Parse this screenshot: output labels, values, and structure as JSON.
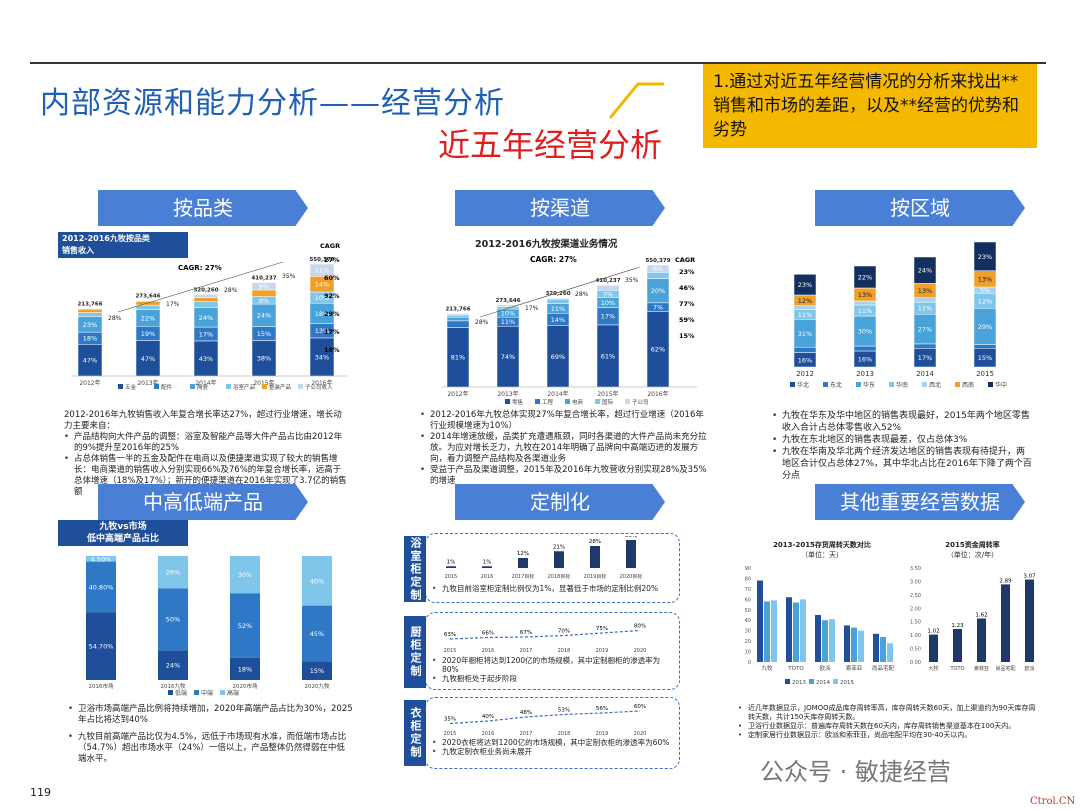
{
  "header": {
    "title": "内部资源和能力分析——经营分析",
    "subtitle": "近五年经营分析",
    "note": "1.通过对近五年经营情况的分析来找出**销售和市场的差距，以及**经营的优势和劣势"
  },
  "banners": {
    "product": "按品类",
    "channel": "按渠道",
    "region": "按区域",
    "tier": "中高低端产品",
    "custom": "定制化",
    "other": "其他重要经营数据"
  },
  "product_chart": {
    "title": "2012-2016九牧按品类\n销售收入",
    "cagr_label": "CAGR: 27%",
    "cagr_head": "CAGR",
    "years": [
      "2012年",
      "2013年",
      "2014年",
      "2015年",
      "2016年"
    ],
    "totals": [
      "213,766",
      "273,646",
      "320,260",
      "410,237",
      "550,379"
    ],
    "growth": [
      "28%",
      "17%",
      "28%",
      "35%"
    ],
    "cagr_values": [
      "27%",
      "60%",
      "92%",
      "29%",
      "17%",
      "18%"
    ],
    "legend": [
      "五金",
      "配件",
      "陶瓷",
      "浴室产品",
      "整装产品",
      "子公司收入"
    ],
    "text_intro": "2012-2016年九牧销售收入年复合增长率达27%，超过行业增速，增长动力主要来自：",
    "bullets": [
      "产品结构向大件产品的调整：浴室及智能产品等大件产品占比由2012年的9%提升至2016年的25%",
      "占总体销售一半的五金及配件在电商以及便捷渠道实现了较大的销售增长：电商渠道的销售收入分别实现66%及76%的年复合增长率，远高于总体增速（18%及17%）；新开的便捷渠道在2016年实现了3.7亿的销售额"
    ]
  },
  "channel_chart": {
    "title": "2012-2016九牧按渠道业务情况",
    "cagr_label": "CAGR: 27%",
    "cagr_head": "CAGR",
    "years": [
      "2012年",
      "2013年",
      "2014年",
      "2015年",
      "2016年"
    ],
    "totals": [
      "213,766",
      "273,646",
      "320,260",
      "410,237",
      "550,379"
    ],
    "growth": [
      "28%",
      "17%",
      "28%",
      "35%"
    ],
    "cagr_values": [
      "23%",
      "46%",
      "77%",
      "59%",
      "15%"
    ],
    "legend": [
      "零售",
      "工程",
      "电商",
      "国际",
      "子公司"
    ],
    "bullets": [
      "2012-2016年九牧总体实现27%年复合增长率，超过行业增速（2016年行业规模增速为10%）",
      "2014年增速放缓，品类扩充遭遇瓶颈，同时各渠道的大件产品尚未充分拉放。为应对增长乏力，九牧在2014年明确了品牌向中高端迈进的发展方向，着力调整产品结构及各渠道业务",
      "受益于产品及渠道调整，2015年及2016年九牧营收分别实现28%及35%的增速"
    ]
  },
  "region_chart": {
    "years": [
      "2012",
      "2013",
      "2014",
      "2015"
    ],
    "legend": [
      "华北",
      "东北",
      "华东",
      "华南",
      "西北",
      "西南",
      "华中"
    ],
    "bullets": [
      "九牧在华东及华中地区的销售表现最好，2015年两个地区零售收入合计占总体零售收入52%",
      "九牧在东北地区的销售表现最差，仅占总体3%",
      "九牧在华南及华北两个经济发达地区的销售表现有待提升，两地区合计仅占总体27%，其中华北占比在2016年下降了两个百分点"
    ]
  },
  "tier_chart": {
    "title": "九牧vs市场\n低中高端产品占比",
    "columns": [
      "2016市场",
      "2016九牧",
      "2020市场",
      "2020九牧"
    ],
    "legend": [
      "低端",
      "中端",
      "高端"
    ],
    "bullets": [
      "卫浴市场高端产品比例将持续增加，2020年高端产品占比为30%，2025年占比将达到40%",
      "九牧目前高端产品比仅为4.5%，远低于市场现有水准，而低端市场占比（54.7%）超出市场水平（24%）一倍以上，产品整体仍然得弱在中低端水平。"
    ]
  },
  "custom": {
    "blocks": [
      {
        "tab": "浴室柜定制",
        "years": [
          "2015",
          "2016",
          "2017目标",
          "2018目标",
          "2019目标",
          "2020目标"
        ],
        "text": "九牧目前浴室柜定制比例仅为1%，显著低于市场的定制比例20%"
      },
      {
        "tab": "厨柜定制",
        "years": [
          "2015",
          "2016",
          "2017",
          "2018",
          "2019",
          "2020"
        ],
        "text": "2020年橱柜将达到1200亿的市场规模，其中定制橱柜的渗透率为80%"
      },
      {
        "tab": "衣柜定制",
        "years": [
          "2015",
          "2016",
          "2017",
          "2018",
          "2019",
          "2020"
        ],
        "text": "2020衣柜将达到1200亿的市场规模，其中定制衣柜的渗透率为60%"
      }
    ],
    "extra": [
      "九牧橱柜处于起步阶段",
      "九牧定制衣柜业务尚未展开"
    ]
  },
  "other": {
    "chart1_title": "2013-2015存货周转天数对比",
    "chart1_unit": "（单位：天）",
    "chart1_groups": [
      "九牧",
      "TOTO",
      "欧派",
      "索菲亚",
      "尚品宅配"
    ],
    "chart1_legend": [
      "2013",
      "2014",
      "2015"
    ],
    "chart2_title": "2015资金周转率",
    "chart2_unit": "（单位：次/年）",
    "chart2_groups": [
      "九牧",
      "TOTO",
      "索菲亚",
      "尚品宅配",
      "欧派"
    ],
    "chart2_labels": [
      "1.02",
      "1.23",
      "1.62",
      "2.89",
      "3.07"
    ],
    "bullets": [
      "近几年数据显示，JOMOO成品库存周转率高，库存周转天数60天，加上渠道约为90天库存周转天数，共计150天库存周转天数。",
      "卫浴行业数据显示：普遍库存周转天数在60天内，库存周转销售渠道基本在100天内。",
      "定制家居行业数据显示：欧派和索菲亚，尚品宅配平均在30-40天以内。"
    ]
  },
  "footer": {
    "page": "119",
    "watermark": "公众号 · 敏捷经营",
    "brand": "Ctrol.CN"
  },
  "chart_data": [
    {
      "type": "bar",
      "title": "2012-2016九牧按品类销售收入",
      "categories": [
        "2012年",
        "2013年",
        "2014年",
        "2015年",
        "2016年"
      ],
      "totals": [
        213766,
        273646,
        320260,
        410237,
        550379
      ],
      "series": [
        {
          "name": "五金",
          "values": [
            47,
            47,
            43,
            38,
            34
          ]
        },
        {
          "name": "配件",
          "values": [
            18,
            19,
            17,
            15,
            13
          ]
        },
        {
          "name": "陶瓷",
          "values": [
            23,
            22,
            24,
            24,
            18
          ]
        },
        {
          "name": "浴室产品",
          "values": [
            6,
            6,
            7,
            8,
            10
          ]
        },
        {
          "name": "整装产品",
          "values": [
            5,
            5,
            5,
            7,
            14
          ]
        },
        {
          "name": "子公司收入",
          "values": [
            1,
            1,
            4,
            8,
            11
          ]
        }
      ]
    },
    {
      "type": "bar",
      "title": "2012-2016九牧按渠道业务情况",
      "categories": [
        "2012年",
        "2013年",
        "2014年",
        "2015年",
        "2016年"
      ],
      "totals": [
        213766,
        273646,
        320260,
        410237,
        550379
      ],
      "series": [
        {
          "name": "零售",
          "values": [
            81,
            74,
            69,
            61,
            62
          ]
        },
        {
          "name": "工程",
          "values": [
            9,
            11,
            14,
            17,
            7
          ]
        },
        {
          "name": "电商",
          "values": [
            5,
            10,
            11,
            10,
            20
          ]
        },
        {
          "name": "国际",
          "values": [
            3,
            3,
            5,
            7,
            5
          ]
        },
        {
          "name": "子公司",
          "values": [
            2,
            2,
            1,
            5,
            6
          ]
        }
      ]
    },
    {
      "type": "bar",
      "title": "按区域",
      "categories": [
        "2012",
        "2013",
        "2014",
        "2015"
      ],
      "series": [
        {
          "name": "华北",
          "values": [
            16,
            16,
            17,
            15
          ]
        },
        {
          "name": "东北",
          "values": [
            6,
            5,
            4,
            3
          ]
        },
        {
          "name": "华东",
          "values": [
            31,
            30,
            27,
            29
          ]
        },
        {
          "name": "华南",
          "values": [
            11,
            11,
            11,
            12
          ]
        },
        {
          "name": "西北",
          "values": [
            4,
            4,
            4,
            5
          ]
        },
        {
          "name": "西南",
          "values": [
            12,
            13,
            13,
            13
          ]
        },
        {
          "name": "华中",
          "values": [
            23,
            22,
            24,
            23
          ]
        }
      ]
    },
    {
      "type": "bar",
      "title": "九牧vs市场 低中高端产品占比",
      "categories": [
        "2016市场",
        "2016九牧",
        "2020市场",
        "2020九牧"
      ],
      "series": [
        {
          "name": "低端",
          "values": [
            54.7,
            24,
            18,
            15
          ]
        },
        {
          "name": "中端",
          "values": [
            40.8,
            50,
            52,
            45
          ]
        },
        {
          "name": "高端",
          "values": [
            4.5,
            26,
            30,
            40
          ]
        }
      ]
    },
    {
      "type": "bar",
      "title": "浴室柜定制",
      "categories": [
        "2015",
        "2016",
        "2017目标",
        "2018目标",
        "2019目标",
        "2020目标"
      ],
      "values": [
        1,
        1,
        12,
        21,
        28,
        36
      ]
    },
    {
      "type": "line",
      "title": "厨柜定制",
      "categories": [
        "2015",
        "2016",
        "2017",
        "2018",
        "2019",
        "2020"
      ],
      "values": [
        63,
        66,
        67,
        70,
        75,
        80
      ]
    },
    {
      "type": "line",
      "title": "衣柜定制",
      "categories": [
        "2015",
        "2016",
        "2017",
        "2018",
        "2019",
        "2020"
      ],
      "values": [
        35,
        40,
        48,
        53,
        56,
        60
      ]
    },
    {
      "type": "bar",
      "title": "2013-2015存货周转天数对比",
      "ylabel": "（单位：天）",
      "ylim": [
        0,
        90
      ],
      "categories": [
        "九牧",
        "TOTO",
        "欧派",
        "索菲亚",
        "尚品宅配"
      ],
      "series": [
        {
          "name": "2013",
          "values": [
            78,
            62,
            45,
            35,
            27
          ]
        },
        {
          "name": "2014",
          "values": [
            58,
            57,
            40,
            33,
            24
          ]
        },
        {
          "name": "2015",
          "values": [
            59,
            60,
            41,
            30,
            18
          ]
        }
      ]
    },
    {
      "type": "bar",
      "title": "2015资金周转率",
      "ylabel": "（单位：次/年）",
      "ylim": [
        0,
        3.5
      ],
      "categories": [
        "九牧",
        "TOTO",
        "索菲亚",
        "尚品宅配",
        "欧派"
      ],
      "values": [
        1.02,
        1.23,
        1.62,
        2.89,
        3.07
      ]
    }
  ]
}
